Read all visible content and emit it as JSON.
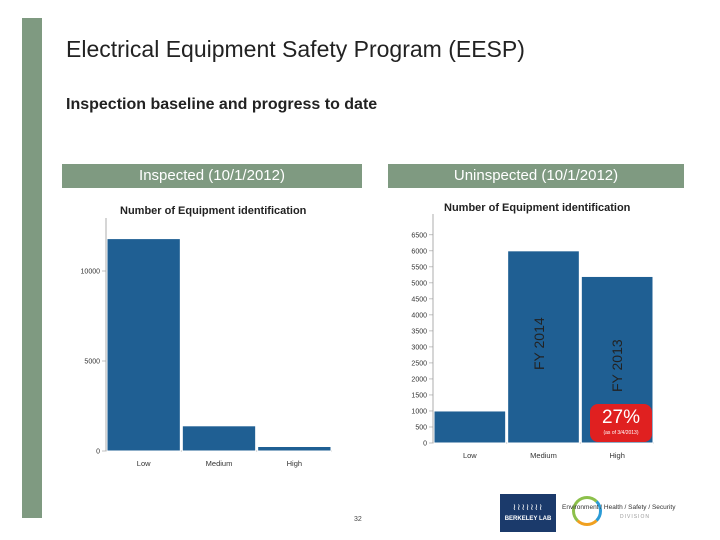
{
  "slide": {
    "title": "Electrical Equipment Safety Program (EESP)",
    "subtitle": "Inspection baseline and progress to date",
    "page_number": "32"
  },
  "colors": {
    "accent": "#7f9a81",
    "bar": "#1f5f93",
    "badge": "#e02020"
  },
  "panels": {
    "left_header": "Inspected (10/1/2012)",
    "right_header": "Uninspected (10/1/2012)"
  },
  "annotations": {
    "fy2014": "FY 2014",
    "fy2013": "FY 2013",
    "badge_pct": "27%",
    "badge_note": "(as of 3/4/2013)"
  },
  "logos": {
    "lab_waves": "≀≀≀≀≀≀≀",
    "lab_name": "BERKELEY LAB",
    "ehss_text": "Environment / Health / Safety / Security",
    "ehss_sub": "DIVISION"
  },
  "chart_data": [
    {
      "type": "bar",
      "title": "Number of Equipment identification",
      "categories": [
        "Low",
        "Medium",
        "High"
      ],
      "values": [
        11800,
        1400,
        250
      ],
      "ylim": [
        0,
        12500
      ],
      "yticks": [
        0,
        5000,
        10000
      ],
      "grid": false
    },
    {
      "type": "bar",
      "title": "Number of Equipment identification",
      "categories": [
        "Low",
        "Medium",
        "High"
      ],
      "values": [
        1000,
        6000,
        5200
      ],
      "ylim": [
        0,
        6900
      ],
      "yticks": [
        0,
        500,
        1000,
        1500,
        2000,
        2500,
        3000,
        3500,
        4000,
        4500,
        5000,
        5500,
        6000,
        6500
      ],
      "grid": false
    }
  ]
}
